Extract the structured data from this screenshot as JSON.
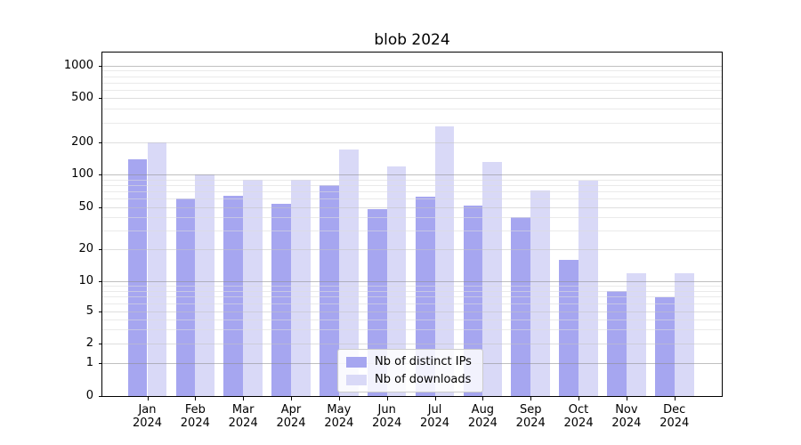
{
  "title": "blob 2024",
  "chart_data": {
    "type": "bar",
    "title": "blob 2024",
    "categories": [
      "Jan",
      "Feb",
      "Mar",
      "Apr",
      "May",
      "Jun",
      "Jul",
      "Aug",
      "Sep",
      "Oct",
      "Nov",
      "Dec"
    ],
    "x_year": "2024",
    "series": [
      {
        "name": "Nb of distinct IPs",
        "color": "#a6a6f0",
        "values": [
          140,
          60,
          64,
          54,
          80,
          48,
          63,
          52,
          40,
          16,
          8,
          7
        ]
      },
      {
        "name": "Nb of downloads",
        "color": "#d9d9f7",
        "values": [
          200,
          100,
          90,
          90,
          170,
          120,
          280,
          130,
          72,
          88,
          12,
          12
        ]
      }
    ],
    "yscale": "symlog",
    "y_ticks": [
      0,
      1,
      2,
      5,
      10,
      20,
      50,
      100,
      200,
      500,
      1000
    ],
    "ylim": [
      0,
      1300
    ],
    "xlabel": "",
    "ylabel": "",
    "grid": true,
    "legend_position": "lower center"
  }
}
